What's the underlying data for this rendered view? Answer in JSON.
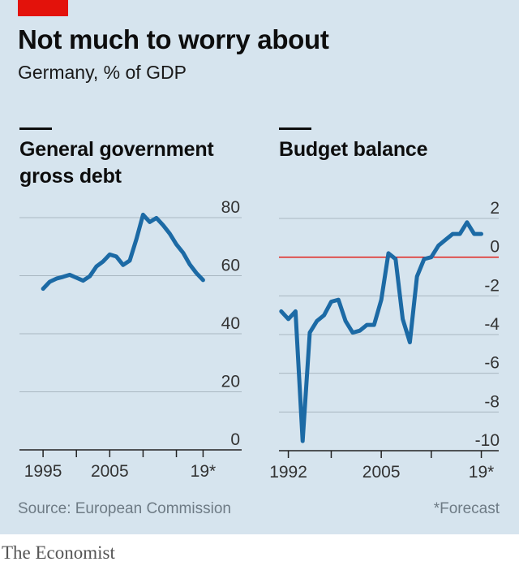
{
  "header": {
    "title": "Not much to worry about",
    "subtitle": "Germany, % of GDP"
  },
  "footer": {
    "source": "Source: European Commission",
    "footnote": "*Forecast",
    "brand": "The Economist"
  },
  "colors": {
    "line": "#1c6aa5",
    "grid": "#a9b7c1",
    "zero_line": "#e3120b",
    "accent": "#e3120b"
  },
  "chart_data": [
    {
      "type": "line",
      "title_lines": [
        "General government",
        "gross debt"
      ],
      "ylim": [
        0,
        80
      ],
      "yticks": [
        0,
        20,
        40,
        60,
        80
      ],
      "ytick_labels": [
        "0",
        "20",
        "40",
        "60",
        "80"
      ],
      "xlim": [
        1994.5,
        2019.8
      ],
      "xticks": [
        1995,
        2000,
        2005,
        2010,
        2015,
        2019
      ],
      "xtick_labels": [
        {
          "x": 1995,
          "label": "1995"
        },
        {
          "x": 2005,
          "label": "2005"
        },
        {
          "x": 2019,
          "label": "19*"
        }
      ],
      "series": [
        {
          "x": [
            1995,
            1996,
            1997,
            1998,
            1999,
            2000,
            2001,
            2002,
            2003,
            2004,
            2005,
            2006,
            2007,
            2008,
            2009,
            2010,
            2011,
            2012,
            2013,
            2014,
            2015,
            2016,
            2017,
            2018,
            2019
          ],
          "y": [
            55.5,
            57.9,
            59.0,
            59.6,
            60.3,
            59.3,
            58.3,
            59.8,
            63.2,
            64.9,
            67.3,
            66.6,
            63.7,
            65.2,
            72.6,
            81.0,
            78.5,
            79.9,
            77.4,
            74.5,
            70.8,
            67.9,
            63.9,
            60.9,
            58.5
          ]
        }
      ]
    },
    {
      "type": "line",
      "title_lines": [
        "Budget balance"
      ],
      "ylim": [
        -10,
        2
      ],
      "yticks": [
        -10,
        -8,
        -6,
        -4,
        -2,
        0,
        2
      ],
      "ytick_labels": [
        "-10",
        "-8",
        "-6",
        "-4",
        "-2",
        "0",
        "2"
      ],
      "zero_line": 0,
      "xlim": [
        1990.8,
        2020.3
      ],
      "xticks": [
        1992,
        1998,
        2005,
        2012,
        2019
      ],
      "xtick_labels": [
        {
          "x": 1992,
          "label": "1992"
        },
        {
          "x": 2005,
          "label": "2005"
        },
        {
          "x": 2019,
          "label": "19*"
        }
      ],
      "series": [
        {
          "x": [
            1991,
            1992,
            1993,
            1994,
            1995,
            1996,
            1997,
            1998,
            1999,
            2000,
            2001,
            2002,
            2003,
            2004,
            2005,
            2006,
            2007,
            2008,
            2009,
            2010,
            2011,
            2012,
            2013,
            2014,
            2015,
            2016,
            2017,
            2018,
            2019
          ],
          "y": [
            -2.8,
            -3.2,
            -2.8,
            -9.5,
            -3.9,
            -3.3,
            -3.0,
            -2.3,
            -2.2,
            -3.3,
            -3.9,
            -3.8,
            -3.5,
            -3.5,
            -2.2,
            0.2,
            -0.1,
            -3.2,
            -4.4,
            -1.0,
            -0.1,
            0.0,
            0.6,
            0.9,
            1.2,
            1.2,
            1.8,
            1.2,
            1.2
          ]
        }
      ]
    }
  ]
}
